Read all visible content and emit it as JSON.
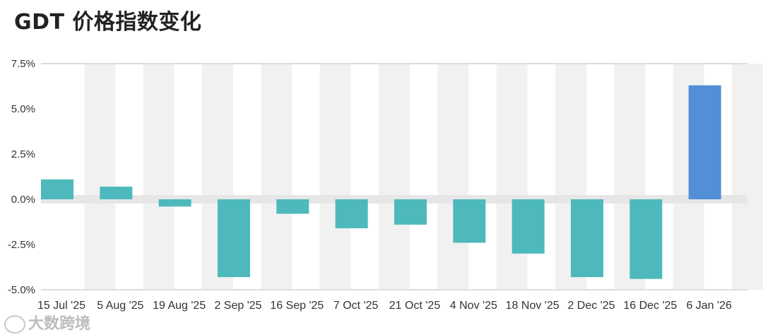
{
  "title": "GDT 价格指数变化",
  "watermark": "大数跨境",
  "colors": {
    "bar_default": "#4db9bd",
    "bar_highlight": "#528fd6",
    "band": "#f1f1f1",
    "zero_band": "#e6e6e6",
    "gridline": "#dddddd"
  },
  "chart_data": {
    "type": "bar",
    "title": "GDT 价格指数变化",
    "xlabel": "",
    "ylabel": "",
    "categories": [
      "15 Jul '25",
      "5 Aug '25",
      "19 Aug '25",
      "2 Sep '25",
      "16 Sep '25",
      "7 Oct '25",
      "21 Oct '25",
      "4 Nov '25",
      "18 Nov '25",
      "2 Dec '25",
      "16 Dec '25",
      "6 Jan '26"
    ],
    "values": [
      1.1,
      0.7,
      -0.4,
      -4.3,
      -0.8,
      -1.6,
      -1.4,
      -2.4,
      -3.0,
      -4.3,
      -4.4,
      6.3
    ],
    "highlight_index": 11,
    "ylim": [
      -5.0,
      7.5
    ],
    "yticks": [
      7.5,
      5.0,
      2.5,
      0.0,
      -2.5,
      -5.0
    ],
    "ytick_labels": [
      "7.5%",
      "5.0%",
      "2.5%",
      "0.0%",
      "-2.5%",
      "-5.0%"
    ],
    "grid": false,
    "legend": "none"
  }
}
